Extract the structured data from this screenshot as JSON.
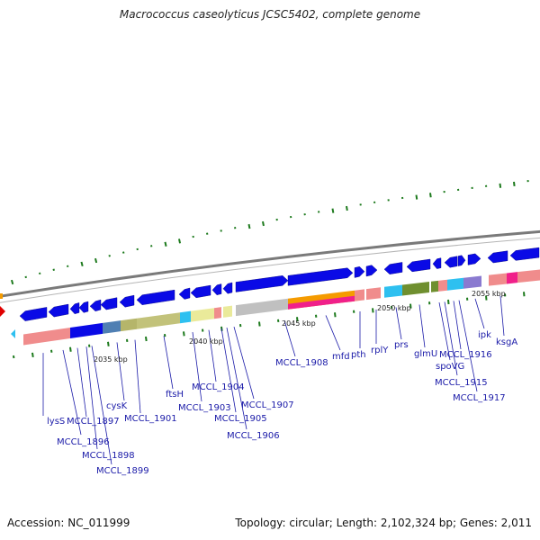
{
  "title": "Macrococcus caseolyticus JCSC5402, complete genome",
  "footer": {
    "accession": "Accession: NC_011999",
    "topology": "Topology: circular; Length: 2,102,324 bp; Genes: 2,011"
  },
  "kbp_ticks": [
    "2035 kbp",
    "2040 kbp",
    "2045 kbp",
    "2050 kbp",
    "2055 kbp"
  ],
  "gene_labels": [
    "lysS",
    "MCCL_1896",
    "MCCL_1897",
    "MCCL_1898",
    "MCCL_1899",
    "cysK",
    "MCCL_1901",
    "ftsH",
    "MCCL_1903",
    "MCCL_1904",
    "MCCL_1905",
    "MCCL_1906",
    "MCCL_1907",
    "MCCL_1908",
    "mfd",
    "pth",
    "rplY",
    "prs",
    "glmU",
    "spoVG",
    "MCCL_1915",
    "MCCL_1916",
    "MCCL_1917",
    "ipk",
    "ksgA"
  ],
  "colors": {
    "forward_gene": "#0a0ae6",
    "backbone": "#808080",
    "green_tick": "#1d7a1d",
    "label": "#1a1aa8"
  }
}
